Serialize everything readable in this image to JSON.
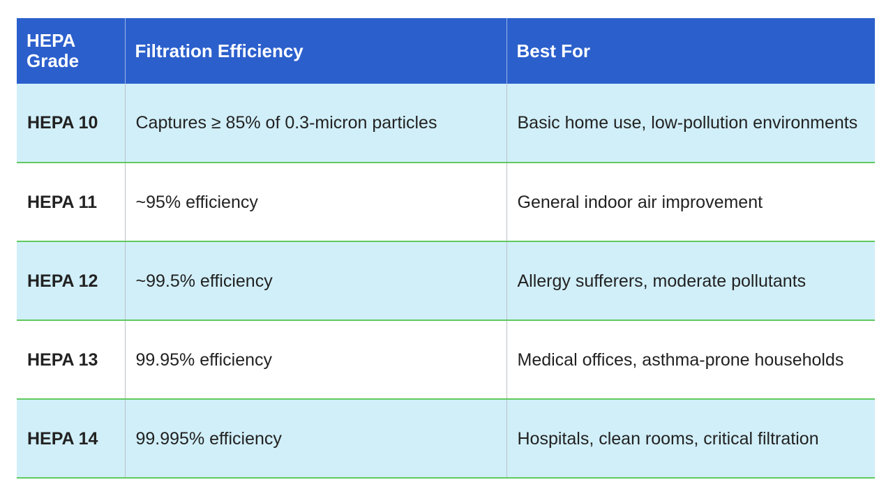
{
  "table": {
    "headers": [
      "HEPA\nGrade",
      "Filtration Efficiency",
      "Best For"
    ],
    "header_grade_line1": "HEPA",
    "header_grade_line2": "Grade",
    "header_efficiency": "Filtration Efficiency",
    "header_best_for": "Best For",
    "rows": [
      {
        "grade": "HEPA 10",
        "efficiency": "Captures ≥ 85% of 0.3-micron particles",
        "best_for": "Basic home use, low-pollution environments"
      },
      {
        "grade": "HEPA 11",
        "efficiency": "~95% efficiency",
        "best_for": "General indoor air improvement"
      },
      {
        "grade": "HEPA 12",
        "efficiency": "~99.5% efficiency",
        "best_for": "Allergy sufferers, moderate pollutants"
      },
      {
        "grade": "HEPA 13",
        "efficiency": "99.95% efficiency",
        "best_for": "Medical offices, asthma-prone households"
      },
      {
        "grade": "HEPA 14",
        "efficiency": "99.995% efficiency",
        "best_for": "Hospitals, clean rooms, critical filtration"
      }
    ]
  },
  "colors": {
    "header_bg": "#2b5fcc",
    "row_shaded": "#d1eff9",
    "row_plain": "#ffffff",
    "row_divider": "#5fc95f"
  }
}
